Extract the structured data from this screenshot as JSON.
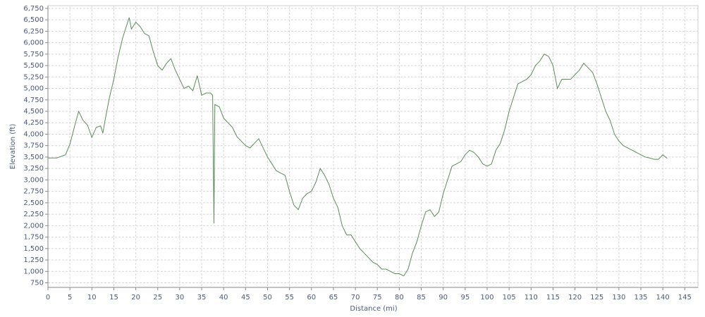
{
  "chart_data": {
    "type": "line",
    "xlabel": "Distance (mi)",
    "ylabel": "Elevation (ft)",
    "x": [
      0,
      2,
      4,
      5,
      6,
      7,
      8,
      9,
      10,
      11,
      12,
      12.5,
      13,
      14,
      15,
      16,
      17,
      18,
      18.5,
      19,
      20,
      21,
      22,
      23,
      24,
      25,
      26,
      27,
      28,
      29,
      30,
      31,
      32,
      33,
      34,
      35,
      36,
      37,
      37.5,
      37.8,
      38,
      39,
      40,
      41,
      42,
      43,
      44,
      45,
      46,
      47,
      48,
      49,
      50,
      51,
      52,
      53,
      54,
      55,
      56,
      57,
      58,
      59,
      60,
      61,
      62,
      63,
      64,
      65,
      66,
      67,
      68,
      69,
      70,
      71,
      72,
      73,
      74,
      75,
      76,
      77,
      78,
      79,
      80,
      81,
      82,
      83,
      84,
      85,
      86,
      87,
      88,
      89,
      90,
      91,
      92,
      93,
      94,
      95,
      96,
      97,
      98,
      99,
      100,
      101,
      102,
      103,
      104,
      105,
      106,
      107,
      108,
      109,
      110,
      111,
      112,
      113,
      114,
      115,
      116,
      117,
      118,
      119,
      120,
      121,
      122,
      123,
      124,
      125,
      126,
      127,
      128,
      129,
      130,
      131,
      132,
      133,
      134,
      135,
      136,
      137,
      138,
      139,
      140,
      141
    ],
    "series": [
      {
        "name": "Elevation",
        "color": "#5b8c5a",
        "values": [
          3480,
          3480,
          3550,
          3780,
          4150,
          4500,
          4300,
          4200,
          3930,
          4150,
          4180,
          4020,
          4300,
          4800,
          5200,
          5700,
          6100,
          6400,
          6550,
          6300,
          6450,
          6350,
          6200,
          6150,
          5800,
          5500,
          5400,
          5550,
          5650,
          5400,
          5200,
          5000,
          5050,
          4950,
          5280,
          4850,
          4900,
          4900,
          4850,
          2050,
          4650,
          4600,
          4350,
          4250,
          4150,
          3950,
          3850,
          3750,
          3700,
          3800,
          3900,
          3700,
          3500,
          3350,
          3200,
          3150,
          3100,
          2750,
          2450,
          2350,
          2600,
          2700,
          2750,
          2950,
          3250,
          3100,
          2900,
          2600,
          2400,
          2000,
          1800,
          1800,
          1650,
          1500,
          1400,
          1300,
          1200,
          1150,
          1050,
          1050,
          1000,
          950,
          950,
          900,
          1050,
          1400,
          1650,
          2000,
          2300,
          2350,
          2200,
          2300,
          2700,
          3000,
          3300,
          3350,
          3400,
          3550,
          3650,
          3600,
          3500,
          3350,
          3300,
          3350,
          3650,
          3800,
          4100,
          4500,
          4800,
          5100,
          5150,
          5200,
          5300,
          5500,
          5600,
          5750,
          5700,
          5500,
          5000,
          5200,
          5200,
          5200,
          5300,
          5400,
          5550,
          5450,
          5350,
          5100,
          4800,
          4500,
          4300,
          4000,
          3850,
          3750,
          3700,
          3650,
          3600,
          3550,
          3500,
          3480,
          3450,
          3450,
          3550,
          3470
        ]
      }
    ],
    "xlim": [
      0,
      148
    ],
    "ylim": [
      650,
      6810
    ],
    "xticks": [
      0,
      5,
      10,
      15,
      20,
      25,
      30,
      35,
      40,
      45,
      50,
      55,
      60,
      65,
      70,
      75,
      80,
      85,
      90,
      95,
      100,
      105,
      110,
      115,
      120,
      125,
      130,
      135,
      140,
      145
    ],
    "yticks": [
      750,
      {
        "value": 1000,
        "label": "1,000"
      },
      {
        "value": 1250,
        "label": "1,250"
      },
      {
        "value": 1500,
        "label": "1,500"
      },
      {
        "value": 1750,
        "label": "1,750"
      },
      {
        "value": 2000,
        "label": "2,000"
      },
      {
        "value": 2250,
        "label": "2,250"
      },
      {
        "value": 2500,
        "label": "2,500"
      },
      {
        "value": 2750,
        "label": "2,750"
      },
      {
        "value": 3000,
        "label": "3,000"
      },
      {
        "value": 3250,
        "label": "3,250"
      },
      {
        "value": 3500,
        "label": "3,500"
      },
      {
        "value": 3750,
        "label": "3,750"
      },
      {
        "value": 4000,
        "label": "4,000"
      },
      {
        "value": 4250,
        "label": "4,250"
      },
      {
        "value": 4500,
        "label": "4,500"
      },
      {
        "value": 4750,
        "label": "4,750"
      },
      {
        "value": 5000,
        "label": "5,000"
      },
      {
        "value": 5250,
        "label": "5,250"
      },
      {
        "value": 5500,
        "label": "5,500"
      },
      {
        "value": 5750,
        "label": "5,750"
      },
      {
        "value": 6000,
        "label": "6,000"
      },
      {
        "value": 6250,
        "label": "6,250"
      },
      {
        "value": 6500,
        "label": "6,500"
      },
      {
        "value": 6750,
        "label": "6,750"
      }
    ],
    "grid": true
  }
}
